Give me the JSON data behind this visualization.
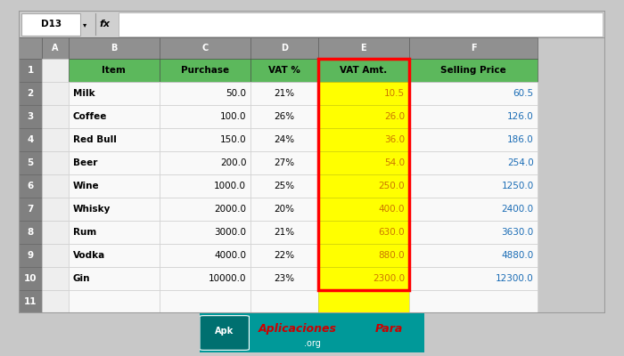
{
  "cell_ref": "D13",
  "rows": [
    [
      "1",
      "",
      "Item",
      "Purchase",
      "VAT %",
      "VAT Amt.",
      "Selling Price"
    ],
    [
      "2",
      "",
      "Milk",
      "50.0",
      "21%",
      "10.5",
      "60.5"
    ],
    [
      "3",
      "",
      "Coffee",
      "100.0",
      "26%",
      "26.0",
      "126.0"
    ],
    [
      "4",
      "",
      "Red Bull",
      "150.0",
      "24%",
      "36.0",
      "186.0"
    ],
    [
      "5",
      "",
      "Beer",
      "200.0",
      "27%",
      "54.0",
      "254.0"
    ],
    [
      "6",
      "",
      "Wine",
      "1000.0",
      "25%",
      "250.0",
      "1250.0"
    ],
    [
      "7",
      "",
      "Whisky",
      "2000.0",
      "20%",
      "400.0",
      "2400.0"
    ],
    [
      "8",
      "",
      "Rum",
      "3000.0",
      "21%",
      "630.0",
      "3630.0"
    ],
    [
      "9",
      "",
      "Vodka",
      "4000.0",
      "22%",
      "880.0",
      "4880.0"
    ],
    [
      "10",
      "",
      "Gin",
      "10000.0",
      "23%",
      "2300.0",
      "12300.0"
    ],
    [
      "11",
      "",
      "",
      "",
      "",
      "",
      ""
    ]
  ],
  "col_letters": [
    "",
    "A",
    "B",
    "C",
    "D",
    "E",
    "F"
  ],
  "header_bg": "#5cb85c",
  "yellow_bg": "#ffff00",
  "col_header_bg": "#888888",
  "row_num_bg": "#777777",
  "grid_bg": "#f8f8f8",
  "outer_bg": "#c8c8c8",
  "spreadsheet_bg": "#ffffff",
  "vat_amt_color": "#cc7700",
  "selling_color": "#1a6cb5",
  "teal_badge": "#009999",
  "badge_text_color": "#dd0000",
  "logo_text1": "Aplicaciones",
  "logo_text2": "Para",
  "logo_sub": ".org"
}
